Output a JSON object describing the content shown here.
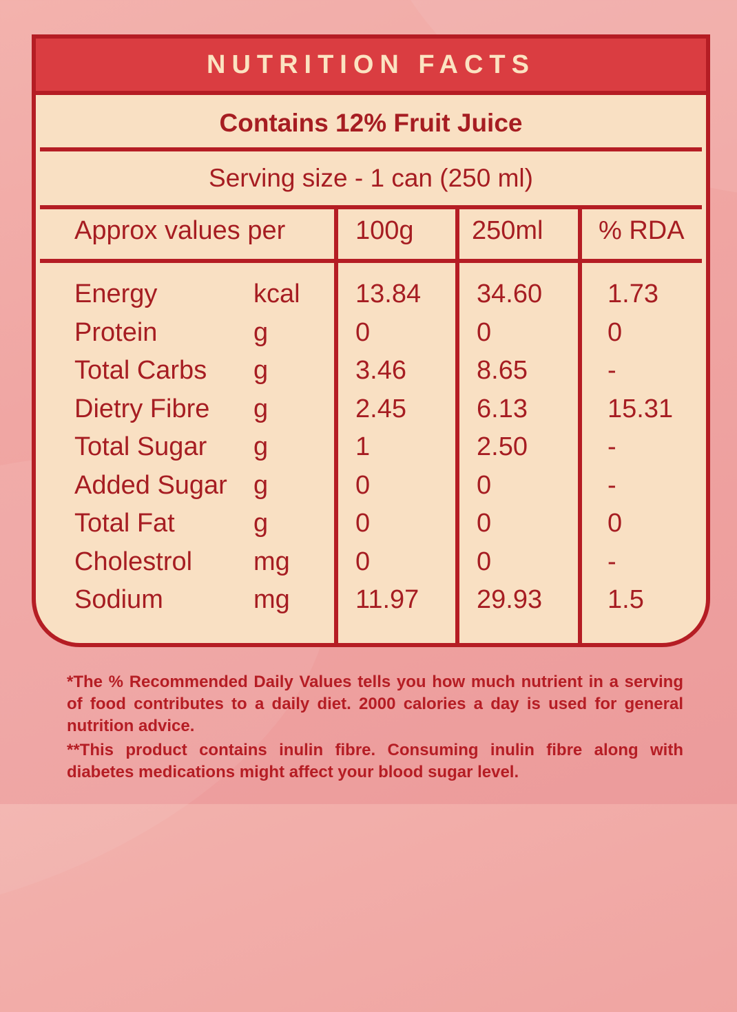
{
  "header": {
    "title": "NUTRITION FACTS"
  },
  "juice_note": "Contains 12% Fruit Juice",
  "serving_size": "Serving size - 1 can (250 ml)",
  "columns": {
    "label": "Approx values per",
    "per_100g": "100g",
    "per_250ml": "250ml",
    "rda": "% RDA"
  },
  "rows": [
    {
      "nutrient": "Energy",
      "unit": "kcal",
      "per_100g": "13.84",
      "per_250ml": "34.60",
      "rda": "1.73"
    },
    {
      "nutrient": "Protein",
      "unit": "g",
      "per_100g": "0",
      "per_250ml": "0",
      "rda": "0"
    },
    {
      "nutrient": "Total Carbs",
      "unit": "g",
      "per_100g": "3.46",
      "per_250ml": "8.65",
      "rda": "-"
    },
    {
      "nutrient": "Dietry Fibre",
      "unit": "g",
      "per_100g": "2.45",
      "per_250ml": "6.13",
      "rda": "15.31"
    },
    {
      "nutrient": "Total Sugar",
      "unit": "g",
      "per_100g": "1",
      "per_250ml": "2.50",
      "rda": "-"
    },
    {
      "nutrient": "Added Sugar",
      "unit": "g",
      "per_100g": "0",
      "per_250ml": "0",
      "rda": "-"
    },
    {
      "nutrient": "Total Fat",
      "unit": "g",
      "per_100g": "0",
      "per_250ml": "0",
      "rda": "0"
    },
    {
      "nutrient": "Cholestrol",
      "unit": "mg",
      "per_100g": "0",
      "per_250ml": "0",
      "rda": "-"
    },
    {
      "nutrient": "Sodium",
      "unit": "mg",
      "per_100g": "11.97",
      "per_250ml": "29.93",
      "rda": "1.5"
    }
  ],
  "footnotes": {
    "rda_note": "*The % Recommended Daily Values tells you how much nutrient in a serving of food contributes to a daily diet. 2000 calories a day is used for general nutrition advice.",
    "inulin_note": "**This product contains inulin fibre. Consuming inulin fibre along with diabetes medications might affect your blood sugar level."
  },
  "colors": {
    "border": "#b51d24",
    "header_bg": "#da3d41",
    "panel_bg": "#f9e0c3",
    "text": "#a61d22"
  }
}
